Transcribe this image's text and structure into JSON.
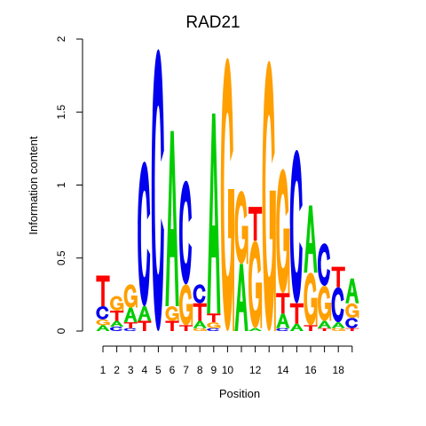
{
  "chart_data": {
    "type": "sequence-logo",
    "title": "RAD21",
    "xlabel": "Position",
    "ylabel": "Information content",
    "ylim": [
      0,
      2
    ],
    "y_ticks": [
      0,
      0.5,
      1,
      1.5,
      2
    ],
    "y_tick_labels": [
      "0",
      "0.5",
      "1",
      "1.5",
      "2"
    ],
    "x_tick_labels": [
      "1",
      "2",
      "3",
      "4",
      "5",
      "6",
      "7",
      "8",
      "9",
      "10",
      "12",
      "14",
      "16",
      "18"
    ],
    "x_tick_positions": [
      1,
      2,
      3,
      4,
      5,
      6,
      7,
      8,
      9,
      10,
      12,
      14,
      16,
      18
    ],
    "positions": [
      {
        "position": 1,
        "letters": [
          {
            "base": "A",
            "height": 0.04
          },
          {
            "base": "G",
            "height": 0.04
          },
          {
            "base": "C",
            "height": 0.09
          },
          {
            "base": "T",
            "height": 0.21
          }
        ]
      },
      {
        "position": 2,
        "letters": [
          {
            "base": "C",
            "height": 0.03
          },
          {
            "base": "A",
            "height": 0.04
          },
          {
            "base": "T",
            "height": 0.07
          },
          {
            "base": "G",
            "height": 0.1
          }
        ]
      },
      {
        "position": 3,
        "letters": [
          {
            "base": "C",
            "height": 0.02
          },
          {
            "base": "T",
            "height": 0.04
          },
          {
            "base": "A",
            "height": 0.1
          },
          {
            "base": "G",
            "height": 0.16
          }
        ]
      },
      {
        "position": 4,
        "letters": [
          {
            "base": "T",
            "height": 0.07
          },
          {
            "base": "A",
            "height": 0.1
          },
          {
            "base": "C",
            "height": 0.99
          }
        ]
      },
      {
        "position": 5,
        "letters": [
          {
            "base": "C",
            "height": 1.93
          }
        ]
      },
      {
        "position": 6,
        "letters": [
          {
            "base": "T",
            "height": 0.07
          },
          {
            "base": "G",
            "height": 0.1
          },
          {
            "base": "A",
            "height": 1.2
          }
        ]
      },
      {
        "position": 7,
        "letters": [
          {
            "base": "T",
            "height": 0.04
          },
          {
            "base": "G",
            "height": 0.28
          },
          {
            "base": "C",
            "height": 0.71
          }
        ]
      },
      {
        "position": 8,
        "letters": [
          {
            "base": "G",
            "height": 0.02
          },
          {
            "base": "A",
            "height": 0.05
          },
          {
            "base": "T",
            "height": 0.12
          },
          {
            "base": "C",
            "height": 0.13
          }
        ]
      },
      {
        "position": 9,
        "letters": [
          {
            "base": "C",
            "height": 0.02
          },
          {
            "base": "G",
            "height": 0.04
          },
          {
            "base": "T",
            "height": 0.06
          },
          {
            "base": "A",
            "height": 1.37
          }
        ]
      },
      {
        "position": 10,
        "letters": [
          {
            "base": "G",
            "height": 1.87
          }
        ]
      },
      {
        "position": 11,
        "letters": [
          {
            "base": "A",
            "height": 0.46
          },
          {
            "base": "G",
            "height": 0.5
          }
        ]
      },
      {
        "position": 12,
        "letters": [
          {
            "base": "A",
            "height": 0.02
          },
          {
            "base": "G",
            "height": 0.6
          },
          {
            "base": "T",
            "height": 0.23
          }
        ]
      },
      {
        "position": 13,
        "letters": [
          {
            "base": "G",
            "height": 1.85
          }
        ]
      },
      {
        "position": 14,
        "letters": [
          {
            "base": "C",
            "height": 0.02
          },
          {
            "base": "A",
            "height": 0.1
          },
          {
            "base": "T",
            "height": 0.14
          },
          {
            "base": "G",
            "height": 0.85
          }
        ]
      },
      {
        "position": 15,
        "letters": [
          {
            "base": "A",
            "height": 0.05
          },
          {
            "base": "T",
            "height": 0.14
          },
          {
            "base": "C",
            "height": 1.05
          }
        ]
      },
      {
        "position": 16,
        "letters": [
          {
            "base": "T",
            "height": 0.04
          },
          {
            "base": "G",
            "height": 0.36
          },
          {
            "base": "A",
            "height": 0.46
          }
        ]
      },
      {
        "position": 17,
        "letters": [
          {
            "base": "T",
            "height": 0.02
          },
          {
            "base": "A",
            "height": 0.05
          },
          {
            "base": "G",
            "height": 0.24
          },
          {
            "base": "C",
            "height": 0.29
          }
        ]
      },
      {
        "position": 18,
        "letters": [
          {
            "base": "G",
            "height": 0.02
          },
          {
            "base": "A",
            "height": 0.04
          },
          {
            "base": "C",
            "height": 0.24
          },
          {
            "base": "T",
            "height": 0.14
          }
        ]
      },
      {
        "position": 19,
        "letters": [
          {
            "base": "T",
            "height": 0.02
          },
          {
            "base": "C",
            "height": 0.07
          },
          {
            "base": "G",
            "height": 0.1
          },
          {
            "base": "A",
            "height": 0.17
          }
        ]
      }
    ],
    "colors": {
      "A": "#00cc00",
      "C": "#0000ee",
      "G": "#ff9f00",
      "T": "#ff0000"
    }
  }
}
